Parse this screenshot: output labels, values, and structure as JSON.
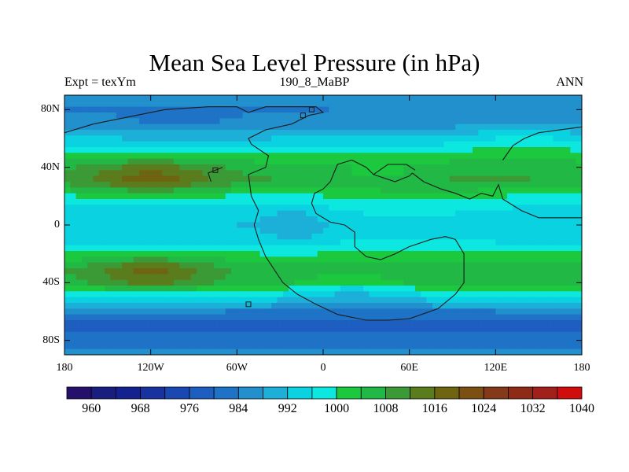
{
  "figure": {
    "title": "Mean Sea Level Pressure (in hPa)",
    "left_label": "Expt = texYm",
    "center_label": "190_8_MaBP",
    "right_label": "ANN"
  },
  "chart_data": {
    "type": "heatmap",
    "title": "Mean Sea Level Pressure (in hPa)",
    "subtitle_left": "Expt = texYm",
    "subtitle_center": "190_8_MaBP",
    "subtitle_right": "ANN",
    "variable_units": "hPa",
    "xlim": [
      -180,
      180
    ],
    "ylim": [
      -90,
      90
    ],
    "x_ticks": [
      {
        "value": -180,
        "label": "180"
      },
      {
        "value": -120,
        "label": "120W"
      },
      {
        "value": -60,
        "label": "60W"
      },
      {
        "value": 0,
        "label": "0"
      },
      {
        "value": 60,
        "label": "60E"
      },
      {
        "value": 120,
        "label": "120E"
      },
      {
        "value": 180,
        "label": "180"
      }
    ],
    "y_ticks": [
      {
        "value": 80,
        "label": "80N"
      },
      {
        "value": 40,
        "label": "40N"
      },
      {
        "value": 0,
        "label": "0"
      },
      {
        "value": -40,
        "label": "40S"
      },
      {
        "value": -80,
        "label": "80S"
      }
    ],
    "colorbar": {
      "levels": [
        960,
        964,
        968,
        972,
        976,
        980,
        984,
        988,
        992,
        996,
        1000,
        1004,
        1008,
        1012,
        1016,
        1020,
        1024,
        1028,
        1032,
        1036,
        1040
      ],
      "labels": [
        "960",
        "968",
        "976",
        "984",
        "992",
        "1000",
        "1008",
        "1016",
        "1024",
        "1032",
        "1040"
      ],
      "colors": [
        "#25116b",
        "#1a1d80",
        "#14228f",
        "#1832a0",
        "#1a48b2",
        "#1d5ec0",
        "#1f73c6",
        "#2290cc",
        "#1cb0d8",
        "#0ad2e0",
        "#0ce8e0",
        "#1cc83e",
        "#22b845",
        "#3b9a36",
        "#5a7c1c",
        "#6e6412",
        "#7c5012",
        "#843a18",
        "#8e2a16",
        "#a2201a",
        "#d00c0c"
      ]
    },
    "grid": false,
    "zonal_profile": [
      {
        "lat": 90,
        "value": 992
      },
      {
        "lat": 80,
        "value": 988
      },
      {
        "lat": 70,
        "value": 990
      },
      {
        "lat": 60,
        "value": 996
      },
      {
        "lat": 50,
        "value": 1004
      },
      {
        "lat": 40,
        "value": 1010
      },
      {
        "lat": 30,
        "value": 1012
      },
      {
        "lat": 20,
        "value": 1003
      },
      {
        "lat": 10,
        "value": 998
      },
      {
        "lat": 0,
        "value": 996
      },
      {
        "lat": -10,
        "value": 998
      },
      {
        "lat": -20,
        "value": 1004
      },
      {
        "lat": -30,
        "value": 1011
      },
      {
        "lat": -40,
        "value": 1010
      },
      {
        "lat": -50,
        "value": 999
      },
      {
        "lat": -60,
        "value": 988
      },
      {
        "lat": -70,
        "value": 982
      },
      {
        "lat": -80,
        "value": 986
      },
      {
        "lat": -90,
        "value": 990
      }
    ],
    "anomalies": [
      {
        "lon": -120,
        "lat": 33,
        "lon_radius": 45,
        "lat_radius": 13,
        "delta": 10
      },
      {
        "lon": -120,
        "lat": -33,
        "lon_radius": 40,
        "lat_radius": 12,
        "delta": 10
      },
      {
        "lon": -20,
        "lat": 0,
        "lon_radius": 22,
        "lat_radius": 14,
        "delta": -4
      },
      {
        "lon": 60,
        "lat": 10,
        "lon_radius": 70,
        "lat_radius": 28,
        "delta": 3
      },
      {
        "lon": 40,
        "lat": 35,
        "lon_radius": 40,
        "lat_radius": 8,
        "delta": -5
      },
      {
        "lon": 140,
        "lat": 60,
        "lon_radius": 40,
        "lat_radius": 12,
        "delta": 5
      },
      {
        "lon": 20,
        "lat": -45,
        "lon_radius": 40,
        "lat_radius": 12,
        "delta": -6
      },
      {
        "lon": -100,
        "lat": 75,
        "lon_radius": 40,
        "lat_radius": 10,
        "delta": -3
      }
    ],
    "coastlines": [
      [
        [
          -52,
          78
        ],
        [
          -40,
          82
        ],
        [
          -20,
          82
        ],
        [
          -5,
          82
        ],
        [
          0,
          78
        ],
        [
          -10,
          76
        ],
        [
          -22,
          70
        ],
        [
          -40,
          66
        ],
        [
          -52,
          60
        ],
        [
          -50,
          56
        ],
        [
          -38,
          48
        ],
        [
          -40,
          40
        ],
        [
          -52,
          35
        ],
        [
          -50,
          20
        ],
        [
          -45,
          10
        ],
        [
          -48,
          0
        ],
        [
          -45,
          -10
        ],
        [
          -40,
          -22
        ],
        [
          -28,
          -40
        ],
        [
          -18,
          -48
        ],
        [
          -5,
          -55
        ],
        [
          10,
          -62
        ],
        [
          30,
          -66
        ],
        [
          45,
          -66
        ],
        [
          60,
          -65
        ],
        [
          80,
          -58
        ],
        [
          92,
          -48
        ],
        [
          98,
          -40
        ],
        [
          98,
          -20
        ],
        [
          92,
          -10
        ],
        [
          85,
          -8
        ],
        [
          75,
          -10
        ],
        [
          60,
          -15
        ],
        [
          50,
          -20
        ],
        [
          40,
          -24
        ],
        [
          30,
          -22
        ],
        [
          22,
          -15
        ],
        [
          22,
          -5
        ],
        [
          15,
          0
        ],
        [
          5,
          2
        ],
        [
          -5,
          8
        ],
        [
          -8,
          15
        ],
        [
          -6,
          22
        ],
        [
          0,
          25
        ],
        [
          5,
          30
        ],
        [
          10,
          42
        ],
        [
          20,
          45
        ],
        [
          30,
          40
        ],
        [
          35,
          35
        ],
        [
          50,
          30
        ],
        [
          55,
          32
        ],
        [
          60,
          34
        ],
        [
          62,
          36
        ]
      ],
      [
        [
          62,
          36
        ],
        [
          70,
          30
        ],
        [
          82,
          25
        ],
        [
          92,
          22
        ],
        [
          102,
          18
        ],
        [
          110,
          22
        ],
        [
          118,
          20
        ],
        [
          122,
          28
        ],
        [
          125,
          18
        ],
        [
          138,
          10
        ],
        [
          150,
          5
        ],
        [
          180,
          5
        ]
      ],
      [
        [
          -180,
          64
        ],
        [
          -160,
          70
        ],
        [
          -140,
          74
        ],
        [
          -110,
          80
        ],
        [
          -80,
          82
        ],
        [
          -60,
          82
        ],
        [
          -52,
          78
        ]
      ],
      [
        [
          125,
          45
        ],
        [
          132,
          55
        ],
        [
          140,
          60
        ],
        [
          150,
          64
        ],
        [
          180,
          68
        ]
      ],
      [
        [
          -70,
          40
        ],
        [
          -80,
          36
        ],
        [
          -78,
          30
        ]
      ],
      [
        [
          35,
          35
        ],
        [
          45,
          42
        ],
        [
          58,
          42
        ],
        [
          64,
          38
        ]
      ]
    ],
    "islands": [
      {
        "lon": -75,
        "lat": 38
      },
      {
        "lon": -52,
        "lat": -55
      },
      {
        "lon": -8,
        "lat": 80
      },
      {
        "lon": -14,
        "lat": 76
      }
    ]
  }
}
